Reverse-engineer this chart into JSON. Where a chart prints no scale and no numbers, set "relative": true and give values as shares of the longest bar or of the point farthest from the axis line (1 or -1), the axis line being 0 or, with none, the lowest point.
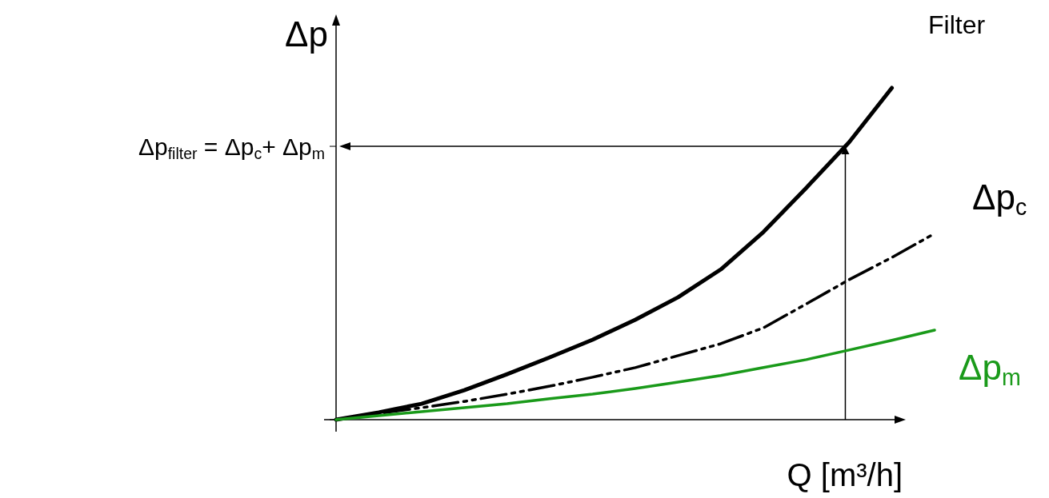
{
  "chart_data": {
    "type": "line",
    "relative": true,
    "xlabel": "Q [m³/h]",
    "ylabel": "Δp",
    "categories": [
      null,
      null,
      null,
      null,
      null,
      null,
      null,
      null,
      null,
      null,
      null,
      null,
      null,
      null,
      null
    ],
    "series": [
      {
        "name": "Filter",
        "color": "#000000",
        "line_style": "solid",
        "values": [
          0,
          0.022,
          0.048,
          0.089,
          0.137,
          0.188,
          0.241,
          0.301,
          0.369,
          0.453,
          0.566,
          0.699,
          0.836,
          1,
          null
        ]
      },
      {
        "name": "Δp$_{c}$",
        "color": "#000000",
        "line_style": "dashed",
        "values": [
          0,
          0.019,
          0.036,
          0.055,
          0.077,
          0.101,
          0.128,
          0.157,
          0.193,
          0.229,
          0.277,
          0.349,
          0.422,
          0.489,
          0.561
        ]
      },
      {
        "name": "Δp$_{m}$",
        "color": "#1a9a1a",
        "line_style": "solid",
        "values": [
          0,
          0.012,
          0.024,
          0.036,
          0.048,
          0.063,
          0.077,
          0.094,
          0.113,
          0.133,
          0.157,
          0.181,
          0.21,
          0.239,
          0.27
        ]
      }
    ],
    "ref_lines": [
      {
        "axis": "y",
        "value": 0.824,
        "label": "Δp$_{filter}$ = Δp$_{c}$+ Δp$_{m}$",
        "color": "#000000"
      }
    ]
  }
}
